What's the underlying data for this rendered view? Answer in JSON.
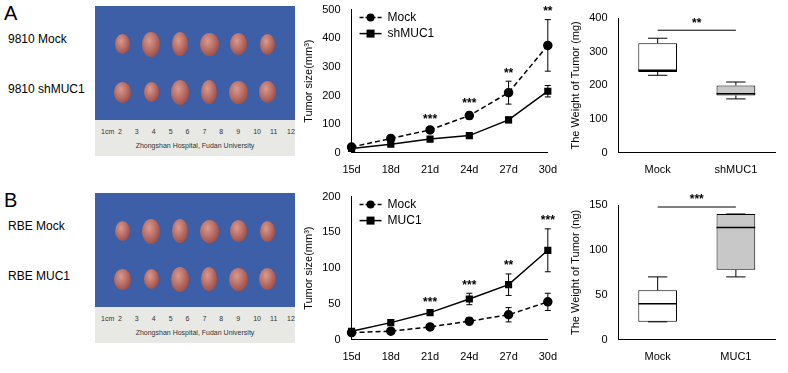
{
  "panel_labels": [
    "A",
    "B"
  ],
  "photos": [
    {
      "rows": [
        "9810 Mock",
        "9810 shMUC1"
      ],
      "tumors_per_row": 6,
      "ruler_labels": [
        "1cm",
        "2",
        "3",
        "4",
        "5",
        "6",
        "7",
        "8",
        "9",
        "10",
        "11",
        "12"
      ],
      "ruler_text": "Zhongshan Hospital, Fudan University"
    },
    {
      "rows": [
        "RBE Mock",
        "RBE MUC1"
      ],
      "tumors_per_row": 6,
      "ruler_labels": [
        "1cm",
        "2",
        "3",
        "4",
        "5",
        "6",
        "7",
        "8",
        "9",
        "10",
        "11",
        "12"
      ],
      "ruler_text": "Zhongshan Hospital, Fudan University"
    }
  ],
  "chart_data": [
    {
      "type": "line",
      "y_label": "Tumor size(mm³)",
      "categories": [
        "15d",
        "18d",
        "21d",
        "24d",
        "27d",
        "30d"
      ],
      "ylim": [
        0,
        500
      ],
      "yticks": [
        0,
        100,
        200,
        300,
        400,
        500
      ],
      "grid": false,
      "legend": "upper left",
      "series": [
        {
          "name": "Mock",
          "color": "#000000",
          "marker": "circle",
          "line_style": "dashed",
          "values": [
            20,
            50,
            80,
            130,
            210,
            375
          ],
          "errors": [
            5,
            8,
            8,
            12,
            40,
            90
          ]
        },
        {
          "name": "shMUC1",
          "color": "#000000",
          "marker": "square",
          "line_style": "solid",
          "values": [
            15,
            30,
            48,
            60,
            115,
            215
          ],
          "errors": [
            3,
            5,
            5,
            5,
            10,
            20
          ]
        }
      ],
      "annotations": [
        {
          "x": "21d",
          "text": "***"
        },
        {
          "x": "24d",
          "text": "***"
        },
        {
          "x": "27d",
          "text": "**"
        },
        {
          "x": "30d",
          "text": "**"
        }
      ]
    },
    {
      "type": "box",
      "y_label": "The Weight of Tumor (mg)",
      "categories": [
        "Mock",
        "shMUC1"
      ],
      "colors": [
        "#ffffff",
        "#c8c8c8"
      ],
      "boxes": [
        {
          "min": 230,
          "q1": 240,
          "median": 245,
          "q3": 325,
          "max": 340
        },
        {
          "min": 160,
          "q1": 170,
          "median": 175,
          "q3": 200,
          "max": 210
        }
      ],
      "ylim": [
        0,
        400
      ],
      "yticks": [
        0,
        100,
        200,
        300,
        400
      ],
      "grid": false,
      "annotations": [
        {
          "from": "Mock",
          "to": "shMUC1",
          "text": "**"
        }
      ]
    },
    {
      "type": "line",
      "y_label": "Tumor size(mm³)",
      "categories": [
        "15d",
        "18d",
        "21d",
        "24d",
        "27d",
        "30d"
      ],
      "ylim": [
        0,
        200
      ],
      "yticks": [
        0,
        50,
        100,
        150,
        200
      ],
      "grid": false,
      "legend": "upper left",
      "series": [
        {
          "name": "Mock",
          "color": "#000000",
          "marker": "circle",
          "line_style": "dashed",
          "values": [
            10,
            12,
            18,
            26,
            35,
            53
          ],
          "errors": [
            2,
            2,
            3,
            5,
            10,
            12
          ]
        },
        {
          "name": "MUC1",
          "color": "#000000",
          "marker": "square",
          "line_style": "solid",
          "values": [
            12,
            24,
            38,
            57,
            77,
            125
          ],
          "errors": [
            2,
            3,
            3,
            8,
            15,
            30
          ]
        }
      ],
      "annotations": [
        {
          "x": "21d",
          "text": "***"
        },
        {
          "x": "24d",
          "text": "***"
        },
        {
          "x": "27d",
          "text": "**"
        },
        {
          "x": "30d",
          "text": "***"
        }
      ]
    },
    {
      "type": "box",
      "y_label": "The Weight of Tumor (ng)",
      "categories": [
        "Mock",
        "MUC1"
      ],
      "colors": [
        "#ffffff",
        "#c8c8c8"
      ],
      "boxes": [
        {
          "min": 20,
          "q1": 20,
          "median": 40,
          "q3": 55,
          "max": 70
        },
        {
          "min": 70,
          "q1": 78,
          "median": 125,
          "q3": 140,
          "max": 140
        }
      ],
      "ylim": [
        0,
        150
      ],
      "yticks": [
        0,
        50,
        100,
        150
      ],
      "grid": false,
      "annotations": [
        {
          "from": "Mock",
          "to": "MUC1",
          "text": "***"
        }
      ]
    }
  ]
}
